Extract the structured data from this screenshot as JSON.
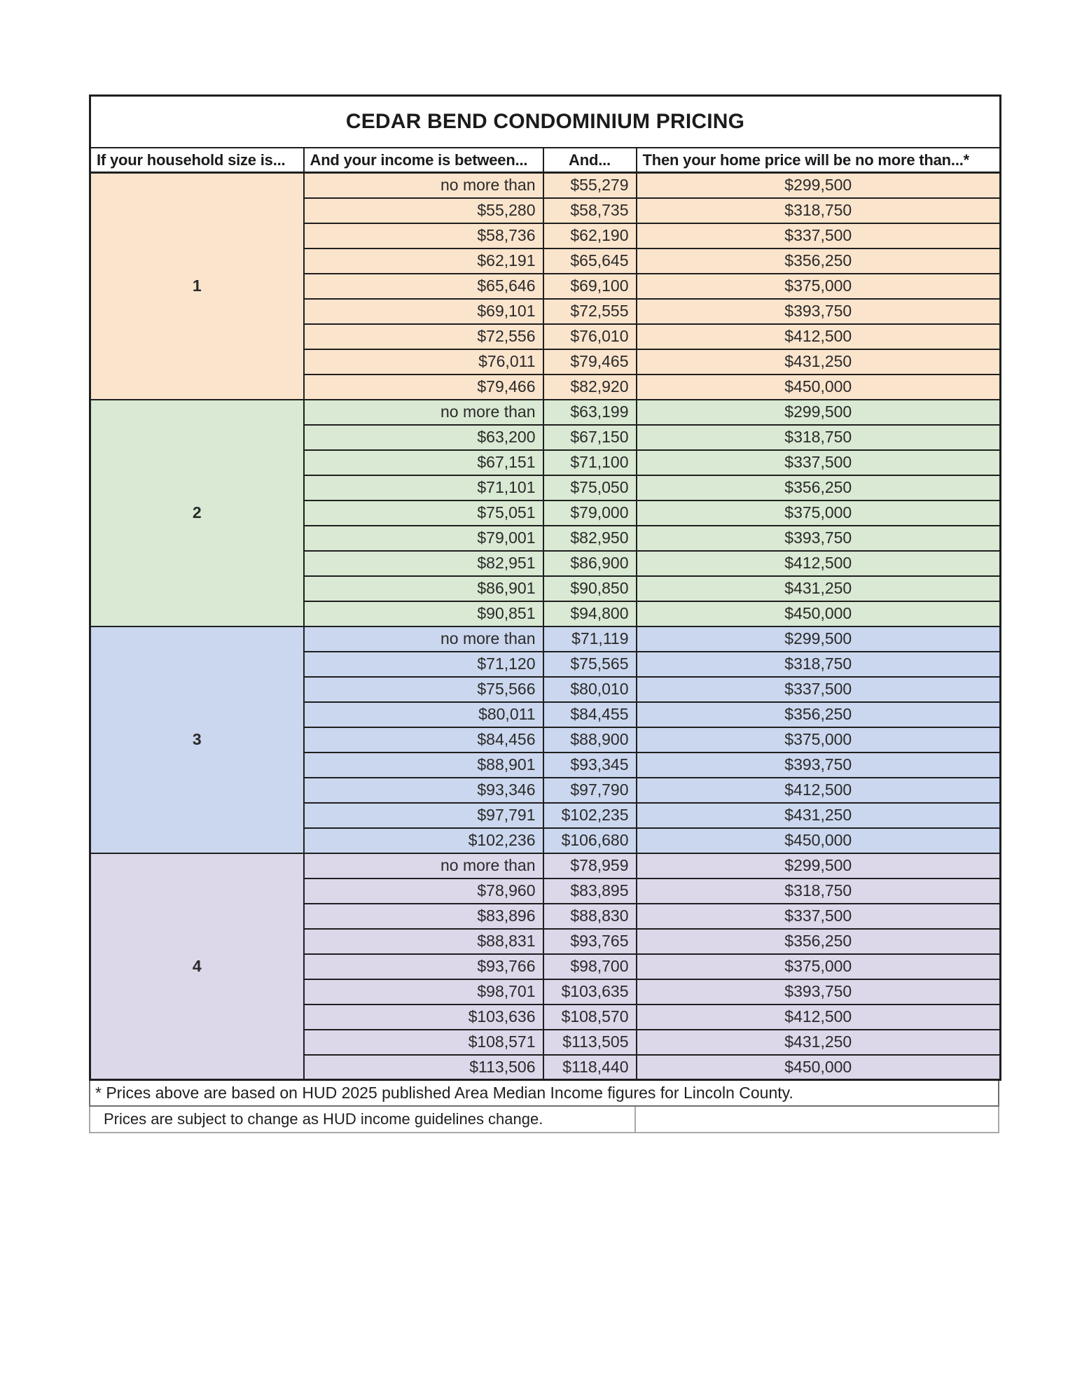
{
  "table": {
    "title": "CEDAR BEND CONDOMINIUM PRICING",
    "columns": [
      "If your household size is...",
      "And your income is between...",
      "And...",
      "Then your home price will be no more than...*"
    ],
    "footnotes": [
      "* Prices above are based on HUD 2025 published Area Median Income figures for Lincoln County.",
      "Prices are subject to change as HUD income guidelines change."
    ],
    "group_colors": {
      "1": "#FBE4CC",
      "2": "#D9E9D3",
      "3": "#CBD7EE",
      "4": "#DDD7EA"
    },
    "border_color": "#1f1f1f",
    "groups": [
      {
        "household_size": "1",
        "color": "#FBE4CC",
        "rows": [
          {
            "income_min": "no more than",
            "income_max": "$55,279",
            "price": "$299,500"
          },
          {
            "income_min": "$55,280",
            "income_max": "$58,735",
            "price": "$318,750"
          },
          {
            "income_min": "$58,736",
            "income_max": "$62,190",
            "price": "$337,500"
          },
          {
            "income_min": "$62,191",
            "income_max": "$65,645",
            "price": "$356,250"
          },
          {
            "income_min": "$65,646",
            "income_max": "$69,100",
            "price": "$375,000"
          },
          {
            "income_min": "$69,101",
            "income_max": "$72,555",
            "price": "$393,750"
          },
          {
            "income_min": "$72,556",
            "income_max": "$76,010",
            "price": "$412,500"
          },
          {
            "income_min": "$76,011",
            "income_max": "$79,465",
            "price": "$431,250"
          },
          {
            "income_min": "$79,466",
            "income_max": "$82,920",
            "price": "$450,000"
          }
        ]
      },
      {
        "household_size": "2",
        "color": "#D9E9D3",
        "rows": [
          {
            "income_min": "no more than",
            "income_max": "$63,199",
            "price": "$299,500"
          },
          {
            "income_min": "$63,200",
            "income_max": "$67,150",
            "price": "$318,750"
          },
          {
            "income_min": "$67,151",
            "income_max": "$71,100",
            "price": "$337,500"
          },
          {
            "income_min": "$71,101",
            "income_max": "$75,050",
            "price": "$356,250"
          },
          {
            "income_min": "$75,051",
            "income_max": "$79,000",
            "price": "$375,000"
          },
          {
            "income_min": "$79,001",
            "income_max": "$82,950",
            "price": "$393,750"
          },
          {
            "income_min": "$82,951",
            "income_max": "$86,900",
            "price": "$412,500"
          },
          {
            "income_min": "$86,901",
            "income_max": "$90,850",
            "price": "$431,250"
          },
          {
            "income_min": "$90,851",
            "income_max": "$94,800",
            "price": "$450,000"
          }
        ]
      },
      {
        "household_size": "3",
        "color": "#CBD7EE",
        "rows": [
          {
            "income_min": "no more than",
            "income_max": "$71,119",
            "price": "$299,500"
          },
          {
            "income_min": "$71,120",
            "income_max": "$75,565",
            "price": "$318,750"
          },
          {
            "income_min": "$75,566",
            "income_max": "$80,010",
            "price": "$337,500"
          },
          {
            "income_min": "$80,011",
            "income_max": "$84,455",
            "price": "$356,250"
          },
          {
            "income_min": "$84,456",
            "income_max": "$88,900",
            "price": "$375,000"
          },
          {
            "income_min": "$88,901",
            "income_max": "$93,345",
            "price": "$393,750"
          },
          {
            "income_min": "$93,346",
            "income_max": "$97,790",
            "price": "$412,500"
          },
          {
            "income_min": "$97,791",
            "income_max": "$102,235",
            "price": "$431,250"
          },
          {
            "income_min": "$102,236",
            "income_max": "$106,680",
            "price": "$450,000"
          }
        ]
      },
      {
        "household_size": "4",
        "color": "#DDD7EA",
        "rows": [
          {
            "income_min": "no more than",
            "income_max": "$78,959",
            "price": "$299,500"
          },
          {
            "income_min": "$78,960",
            "income_max": "$83,895",
            "price": "$318,750"
          },
          {
            "income_min": "$83,896",
            "income_max": "$88,830",
            "price": "$337,500"
          },
          {
            "income_min": "$88,831",
            "income_max": "$93,765",
            "price": "$356,250"
          },
          {
            "income_min": "$93,766",
            "income_max": "$98,700",
            "price": "$375,000"
          },
          {
            "income_min": "$98,701",
            "income_max": "$103,635",
            "price": "$393,750"
          },
          {
            "income_min": "$103,636",
            "income_max": "$108,570",
            "price": "$412,500"
          },
          {
            "income_min": "$108,571",
            "income_max": "$113,505",
            "price": "$431,250"
          },
          {
            "income_min": "$113,506",
            "income_max": "$118,440",
            "price": "$450,000"
          }
        ]
      }
    ]
  }
}
